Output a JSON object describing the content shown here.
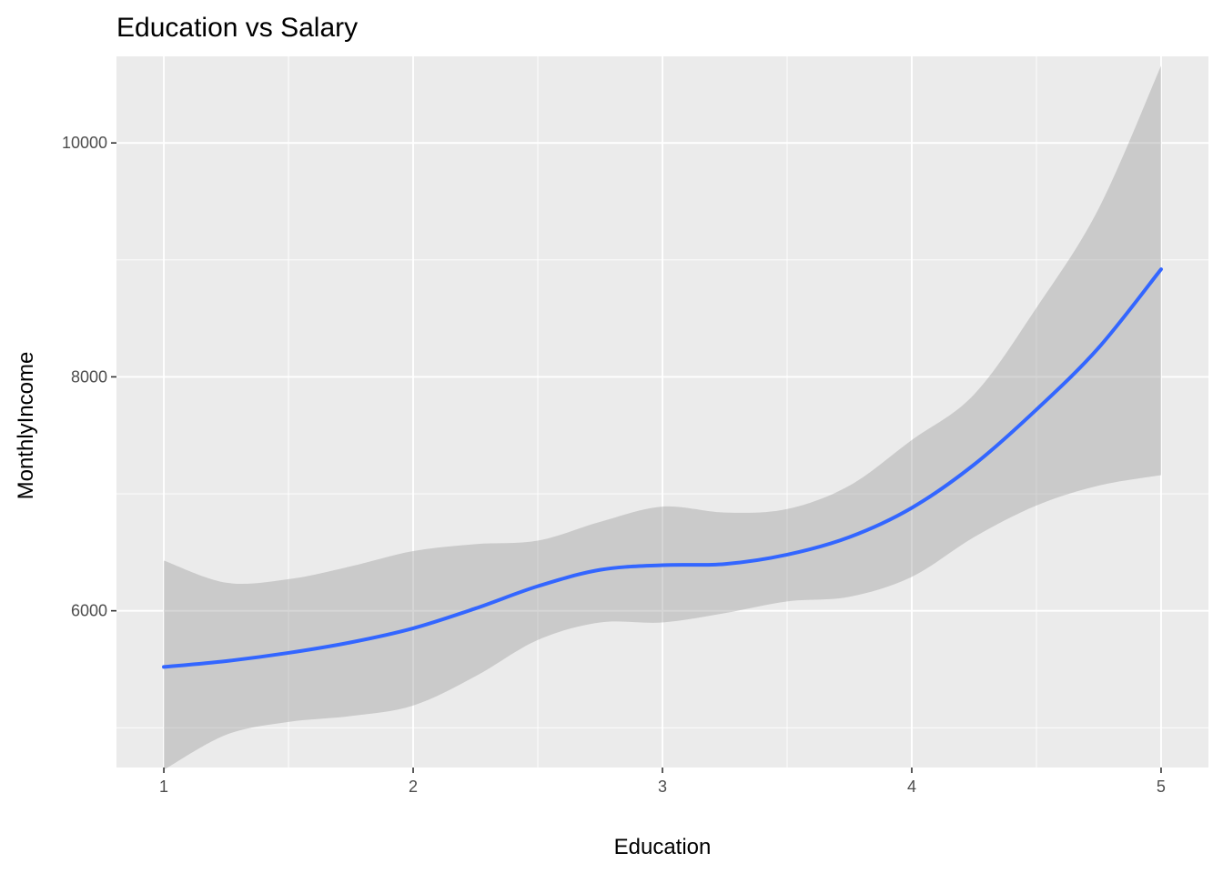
{
  "chart_data": {
    "type": "line",
    "title": "Education vs Salary",
    "xlabel": "Education",
    "ylabel": "MonthlyIncome",
    "xlim": [
      0.81,
      5.19
    ],
    "ylim": [
      4660,
      10740
    ],
    "x_ticks": [
      1,
      2,
      3,
      4,
      5
    ],
    "y_ticks": [
      6000,
      8000,
      10000
    ],
    "x_tick_labels": [
      "1",
      "2",
      "3",
      "4",
      "5"
    ],
    "y_tick_labels": [
      "6000",
      "8000",
      "10000"
    ],
    "grid": true,
    "legend": "none",
    "series": [
      {
        "x": [
          1.0,
          1.25,
          1.5,
          1.75,
          2.0,
          2.25,
          2.5,
          2.75,
          3.0,
          3.25,
          3.5,
          3.75,
          4.0,
          4.25,
          4.5,
          4.75,
          5.0
        ],
        "values": [
          5520,
          5570,
          5640,
          5730,
          5850,
          6020,
          6210,
          6350,
          6390,
          6400,
          6480,
          6630,
          6880,
          7250,
          7720,
          8250,
          8920
        ],
        "lower": [
          4640,
          4940,
          5050,
          5100,
          5190,
          5440,
          5750,
          5900,
          5900,
          5980,
          6080,
          6120,
          6290,
          6630,
          6900,
          7070,
          7160
        ],
        "upper": [
          6430,
          6240,
          6270,
          6380,
          6510,
          6570,
          6600,
          6760,
          6890,
          6840,
          6870,
          7070,
          7460,
          7850,
          8590,
          9440,
          10660
        ]
      }
    ],
    "colors": {
      "line": "#3366ff",
      "ribbon": "#999999",
      "panel": "#ebebeb",
      "grid": "#ffffff"
    }
  }
}
